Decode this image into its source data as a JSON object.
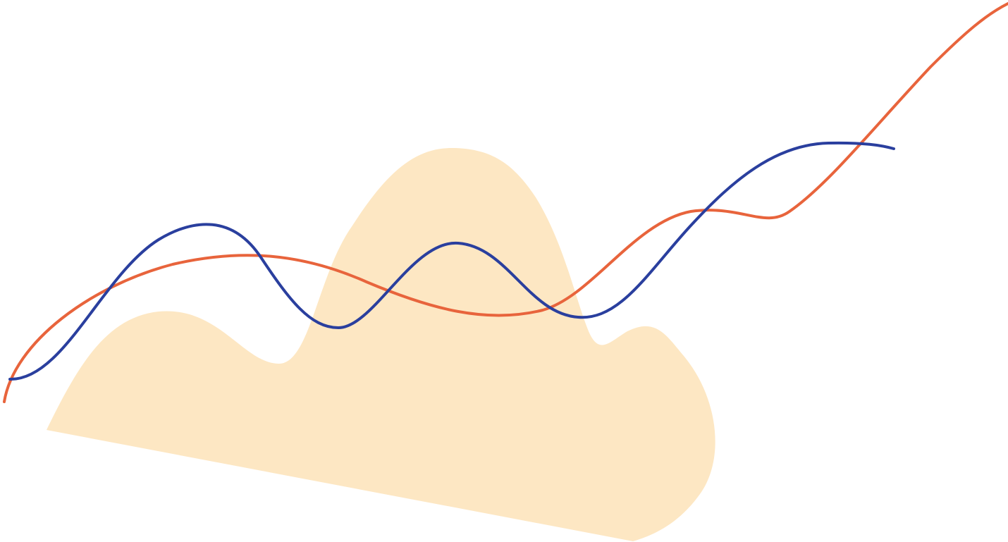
{
  "colors": {
    "background": "#ffffff",
    "blob_fill": "#fde7c3",
    "orange_line": "#e8643c",
    "blue_line": "#2a3f9e"
  },
  "shapes": {
    "blob": "peach-blob",
    "lines": [
      "orange-wave-line",
      "blue-wave-line"
    ]
  }
}
